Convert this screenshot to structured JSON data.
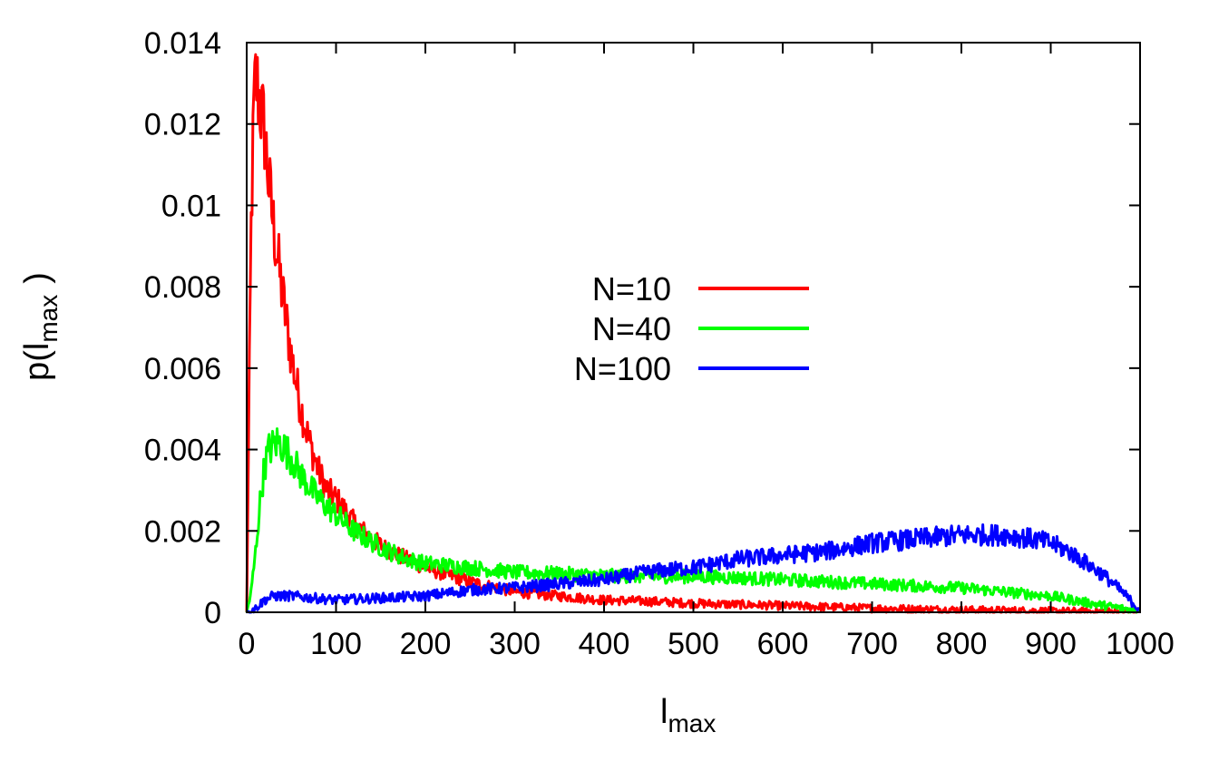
{
  "chart_data": {
    "type": "line",
    "title": "",
    "xlabel": {
      "main": "l",
      "sub": "max"
    },
    "ylabel": {
      "prefix": "p(l",
      "sub": "max",
      "suffix": ")"
    },
    "xlim": [
      0,
      1000
    ],
    "ylim": [
      0,
      0.014
    ],
    "xticks": [
      0,
      100,
      200,
      300,
      400,
      500,
      600,
      700,
      800,
      900,
      1000
    ],
    "xtick_labels": [
      "0",
      "100",
      "200",
      "300",
      "400",
      "500",
      "600",
      "700",
      "800",
      "900",
      "1000"
    ],
    "yticks": [
      0,
      0.002,
      0.004,
      0.006,
      0.008,
      0.01,
      0.012,
      0.014
    ],
    "ytick_labels": [
      "0",
      "0.002",
      "0.004",
      "0.006",
      "0.008",
      "0.01",
      "0.012",
      "0.014"
    ],
    "grid": false,
    "legend_position": "center",
    "series": [
      {
        "name": "N=10",
        "color": "#ff0000",
        "x": [
          0,
          2,
          5,
          8,
          10,
          12,
          15,
          20,
          25,
          30,
          40,
          50,
          60,
          70,
          80,
          90,
          100,
          120,
          140,
          160,
          180,
          200,
          220,
          250,
          300,
          350,
          400,
          450,
          500,
          600,
          700,
          800,
          900,
          1000
        ],
        "y": [
          0,
          0.004,
          0.0095,
          0.0123,
          0.0131,
          0.0129,
          0.0125,
          0.0118,
          0.0105,
          0.0095,
          0.0078,
          0.0063,
          0.0051,
          0.0042,
          0.0035,
          0.003,
          0.0028,
          0.0022,
          0.0018,
          0.0015,
          0.0013,
          0.0011,
          0.00095,
          0.00075,
          0.0005,
          0.0004,
          0.0003,
          0.00027,
          0.00022,
          0.00016,
          0.0001,
          6e-05,
          3e-05,
          1e-05
        ]
      },
      {
        "name": "N=40",
        "color": "#00ff00",
        "x": [
          0,
          5,
          10,
          15,
          20,
          25,
          30,
          35,
          40,
          50,
          60,
          80,
          100,
          120,
          150,
          180,
          200,
          250,
          300,
          350,
          400,
          450,
          500,
          550,
          600,
          650,
          700,
          750,
          800,
          850,
          900,
          950,
          1000
        ],
        "y": [
          0,
          0.0005,
          0.0015,
          0.0027,
          0.0036,
          0.004,
          0.0041,
          0.0042,
          0.0041,
          0.0038,
          0.0034,
          0.0028,
          0.0024,
          0.002,
          0.0016,
          0.0013,
          0.0012,
          0.0011,
          0.00098,
          0.00095,
          0.0009,
          0.00088,
          0.00088,
          0.00085,
          0.0008,
          0.00075,
          0.0007,
          0.00065,
          0.0006,
          0.0005,
          0.0004,
          0.0002,
          3e-05
        ]
      },
      {
        "name": "N=100",
        "color": "#0000ff",
        "x": [
          0,
          10,
          20,
          30,
          50,
          100,
          150,
          200,
          250,
          300,
          350,
          400,
          450,
          500,
          550,
          600,
          650,
          700,
          750,
          800,
          850,
          880,
          900,
          920,
          940,
          960,
          980,
          1000
        ],
        "y": [
          0,
          0.0001,
          0.0003,
          0.0004,
          0.0004,
          0.0003,
          0.00035,
          0.0004,
          0.00055,
          0.0006,
          0.0007,
          0.0008,
          0.001,
          0.0011,
          0.0013,
          0.0014,
          0.0015,
          0.0017,
          0.0018,
          0.0019,
          0.0019,
          0.0018,
          0.0017,
          0.0015,
          0.0012,
          0.0009,
          0.0005,
          5e-05
        ]
      }
    ]
  }
}
